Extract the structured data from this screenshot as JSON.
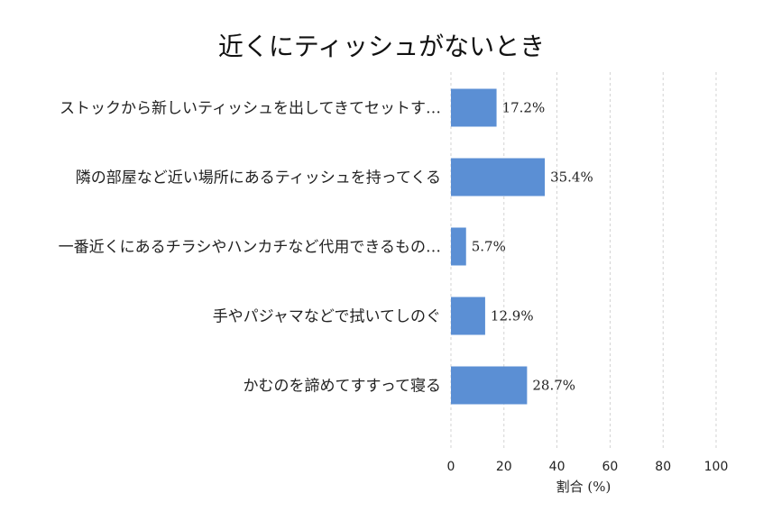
{
  "chart_data": {
    "type": "bar",
    "orientation": "horizontal",
    "title": "近くにティッシュがないとき",
    "categories": [
      "ストックから新しいティッシュを出してきてセットす…",
      "隣の部屋など近い場所にあるティッシュを持ってくる",
      "一番近くにあるチラシやハンカチなど代用できるもの…",
      "手やパジャマなどで拭いてしのぐ",
      "かむのを諦めてすすって寝る"
    ],
    "values": [
      17.2,
      35.4,
      5.7,
      12.9,
      28.7
    ],
    "value_labels": [
      "17.2%",
      "35.4%",
      "5.7%",
      "12.9%",
      "28.7%"
    ],
    "xlabel": "割合 (%)",
    "ylabel": "",
    "xlim": [
      0,
      100
    ],
    "xticks": [
      0,
      20,
      40,
      60,
      80,
      100
    ],
    "grid": "vertical dashed",
    "bar_color": "#5b8fd4"
  }
}
